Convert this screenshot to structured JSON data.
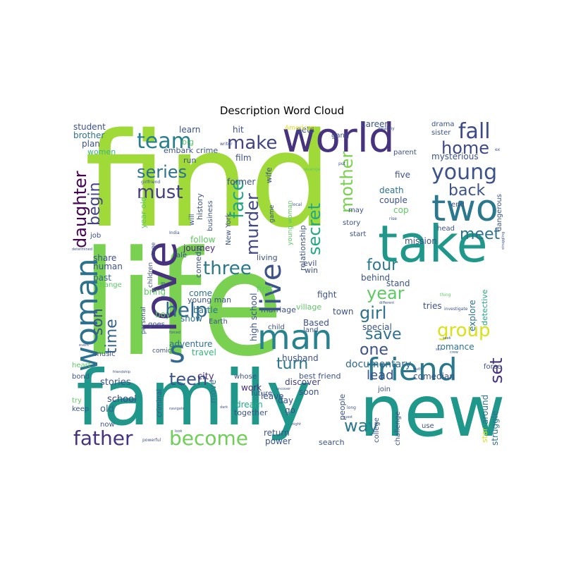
{
  "title": "Description Word Cloud",
  "cloud": {
    "words": [
      {
        "text": "life",
        "color": "#7ad151"
      },
      {
        "text": "find",
        "color": "#a0da39"
      },
      {
        "text": "family",
        "color": "#1f988b"
      },
      {
        "text": "new",
        "color": "#1f988b"
      },
      {
        "text": "world",
        "color": "#46327e"
      },
      {
        "text": "take",
        "color": "#1f988b"
      },
      {
        "text": "love",
        "color": "#46327e"
      },
      {
        "text": "man",
        "color": "#26828e"
      },
      {
        "text": "friend",
        "color": "#2a788e"
      },
      {
        "text": "two",
        "color": "#2a788e"
      },
      {
        "text": "woman",
        "color": "#2c728e"
      },
      {
        "text": "live",
        "color": "#3b528b"
      },
      {
        "text": "s",
        "color": "#31688e"
      },
      {
        "text": "team",
        "color": "#277f8e"
      },
      {
        "text": "young",
        "color": "#3b528b"
      },
      {
        "text": "help",
        "color": "#31688e"
      },
      {
        "text": "make",
        "color": "#414487"
      },
      {
        "text": "fall",
        "color": "#3e4989"
      },
      {
        "text": "father",
        "color": "#46327e"
      },
      {
        "text": "become",
        "color": "#6ece58"
      },
      {
        "text": "three",
        "color": "#2a788e"
      },
      {
        "text": "series",
        "color": "#2c728e"
      },
      {
        "text": "home",
        "color": "#3e4989"
      },
      {
        "text": "must",
        "color": "#433e85"
      },
      {
        "text": "back",
        "color": "#3b528b"
      },
      {
        "text": "face",
        "color": "#21a685"
      },
      {
        "text": "murder",
        "color": "#3e4989"
      },
      {
        "text": "mother",
        "color": "#7ad151"
      },
      {
        "text": "secret",
        "color": "#22a884"
      },
      {
        "text": "daughter",
        "color": "#440154"
      },
      {
        "text": "begin",
        "color": "#414487"
      },
      {
        "text": "son",
        "color": "#3b528b"
      },
      {
        "text": "time",
        "color": "#33638d"
      },
      {
        "text": "four",
        "color": "#2a788e"
      },
      {
        "text": "meet",
        "color": "#2c728e"
      },
      {
        "text": "year",
        "color": "#5ec962"
      },
      {
        "text": "girl",
        "color": "#2c728e"
      },
      {
        "text": "group",
        "color": "#d8e219"
      },
      {
        "text": "save",
        "color": "#2c728e"
      },
      {
        "text": "one",
        "color": "#3b528b"
      },
      {
        "text": "turn",
        "color": "#2a788e"
      },
      {
        "text": "teen",
        "color": "#3b528b"
      },
      {
        "text": "set",
        "color": "#46327e"
      },
      {
        "text": "way",
        "color": "#2a788e"
      },
      {
        "text": "lead",
        "color": "#3b528b"
      },
      {
        "text": "documentary",
        "color": "#31688e"
      },
      {
        "text": "stories",
        "color": "#3b528b"
      },
      {
        "text": "school",
        "color": "#3e4989"
      },
      {
        "text": "old",
        "color": "#33638d"
      },
      {
        "text": "share",
        "color": "#3b528b"
      },
      {
        "text": "past",
        "color": "#33638d"
      },
      {
        "text": "human",
        "color": "#3b528b"
      },
      {
        "text": "bring",
        "color": "#5ec962"
      },
      {
        "text": "come",
        "color": "#2c728e"
      },
      {
        "text": "battle",
        "color": "#2c728e"
      },
      {
        "text": "show",
        "color": "#2c728e"
      },
      {
        "text": "boy",
        "color": "#5ec962"
      },
      {
        "text": "adventure",
        "color": "#2c728e"
      },
      {
        "text": "travel",
        "color": "#35b779"
      },
      {
        "text": "journey",
        "color": "#482878"
      },
      {
        "text": "follow",
        "color": "#5ec962"
      },
      {
        "text": "city",
        "color": "#46327e"
      },
      {
        "text": "work",
        "color": "#482878"
      },
      {
        "text": "dream",
        "color": "#22a884"
      },
      {
        "text": "move",
        "color": "#2c728e"
      },
      {
        "text": "together",
        "color": "#3b528b"
      },
      {
        "text": "day",
        "color": "#3b528b"
      },
      {
        "text": "go",
        "color": "#3b528b"
      },
      {
        "text": "return",
        "color": "#3b528b"
      },
      {
        "text": "power",
        "color": "#3b528b"
      },
      {
        "text": "search",
        "color": "#3b528b"
      },
      {
        "text": "discover",
        "color": "#433e85"
      },
      {
        "text": "soon",
        "color": "#3b528b"
      },
      {
        "text": "leave",
        "color": "#3b528b"
      },
      {
        "text": "husband",
        "color": "#3b528b"
      },
      {
        "text": "comedian",
        "color": "#3b528b"
      },
      {
        "text": "romance",
        "color": "#2c728e"
      },
      {
        "text": "special",
        "color": "#3b528b"
      },
      {
        "text": "fight",
        "color": "#3b528b"
      },
      {
        "text": "town",
        "color": "#3b528b"
      },
      {
        "text": "Based",
        "color": "#3b528b"
      },
      {
        "text": "behind",
        "color": "#3b528b"
      },
      {
        "text": "stand",
        "color": "#3b528b"
      },
      {
        "text": "tries",
        "color": "#3b528b"
      },
      {
        "text": "explore",
        "color": "#2c728e"
      },
      {
        "text": "detective",
        "color": "#22a884"
      },
      {
        "text": "star",
        "color": "#d8e219"
      },
      {
        "text": "around",
        "color": "#2c728e"
      },
      {
        "text": "struggle",
        "color": "#2c728e"
      },
      {
        "text": "mission",
        "color": "#3b528b"
      },
      {
        "text": "death",
        "color": "#2c728e"
      },
      {
        "text": "couple",
        "color": "#3b528b"
      },
      {
        "text": "cop",
        "color": "#5ec962"
      },
      {
        "text": "five",
        "color": "#3b528b"
      },
      {
        "text": "mysterious",
        "color": "#3b528b"
      },
      {
        "text": "career",
        "color": "#3b528b"
      },
      {
        "text": "student",
        "color": "#3b528b"
      },
      {
        "text": "brother",
        "color": "#2c728e"
      },
      {
        "text": "plan",
        "color": "#3b528b"
      },
      {
        "text": "women",
        "color": "#35b779"
      },
      {
        "text": "learn",
        "color": "#3b528b"
      },
      {
        "text": "hit",
        "color": "#3b528b"
      },
      {
        "text": "gets",
        "color": "#3b528b"
      },
      {
        "text": "embark",
        "color": "#3b528b"
      },
      {
        "text": "crime",
        "color": "#3b528b"
      },
      {
        "text": "run",
        "color": "#3b528b"
      },
      {
        "text": "film",
        "color": "#3b528b"
      },
      {
        "text": "former",
        "color": "#3b528b"
      },
      {
        "text": "wife",
        "color": "#3b528b"
      },
      {
        "text": "history",
        "color": "#3b528b"
      },
      {
        "text": "business",
        "color": "#3b528b"
      },
      {
        "text": "comedy",
        "color": "#3b528b"
      },
      {
        "text": "living",
        "color": "#3b528b"
      },
      {
        "text": "evil",
        "color": "#3b528b"
      },
      {
        "text": "win",
        "color": "#3b528b"
      },
      {
        "text": "relationship",
        "color": "#3b528b"
      },
      {
        "text": "high school",
        "color": "#3b528b"
      },
      {
        "text": "marriage",
        "color": "#3b528b"
      },
      {
        "text": "village",
        "color": "#5ec962"
      },
      {
        "text": "first",
        "color": "#5ec962"
      },
      {
        "text": "young man",
        "color": "#3b528b"
      },
      {
        "text": "Earth",
        "color": "#3b528b"
      },
      {
        "text": "child",
        "color": "#3b528b"
      },
      {
        "text": "land",
        "color": "#3b528b"
      },
      {
        "text": "best friend",
        "color": "#3b528b"
      },
      {
        "text": "people",
        "color": "#3b528b"
      },
      {
        "text": "college",
        "color": "#3b528b"
      },
      {
        "text": "challenge",
        "color": "#3b528b"
      },
      {
        "text": "join",
        "color": "#3b528b"
      },
      {
        "text": "use",
        "color": "#3b528b"
      },
      {
        "text": "drama",
        "color": "#3b528b"
      },
      {
        "text": "sister",
        "color": "#3b528b"
      },
      {
        "text": "parent",
        "color": "#3b528b"
      },
      {
        "text": "dangerous",
        "color": "#3b528b"
      },
      {
        "text": "force",
        "color": "#3b528b"
      },
      {
        "text": "end",
        "color": "#3b528b"
      },
      {
        "text": "head",
        "color": "#3b528b"
      },
      {
        "text": "story",
        "color": "#3b528b"
      },
      {
        "text": "start",
        "color": "#3b528b"
      },
      {
        "text": "may",
        "color": "#3b528b"
      },
      {
        "text": "New York",
        "color": "#3b528b"
      },
      {
        "text": "will",
        "color": "#3b528b"
      },
      {
        "text": "young woman",
        "color": "#5ec962"
      },
      {
        "text": "American",
        "color": "#d8e219"
      },
      {
        "text": "big",
        "color": "#5ec962"
      },
      {
        "text": "gang",
        "color": "#3b528b"
      },
      {
        "text": "game",
        "color": "#3b528b"
      },
      {
        "text": "job",
        "color": "#3b528b"
      },
      {
        "text": "children",
        "color": "#3b528b"
      },
      {
        "text": "year old",
        "color": "#5ec962"
      },
      {
        "text": "tale",
        "color": "#3b528b"
      },
      {
        "text": "stage",
        "color": "#3b528b"
      },
      {
        "text": "kid",
        "color": "#3b528b"
      },
      {
        "text": "change",
        "color": "#5ec962"
      },
      {
        "text": "goes",
        "color": "#3b528b"
      },
      {
        "text": "personal",
        "color": "#3b528b"
      },
      {
        "text": "music",
        "color": "#3b528b"
      },
      {
        "text": "comic",
        "color": "#3b528b"
      },
      {
        "text": "heart",
        "color": "#5ec962"
      },
      {
        "text": "bond",
        "color": "#3b528b"
      },
      {
        "text": "try",
        "color": "#5ec962"
      },
      {
        "text": "keep",
        "color": "#3b528b"
      },
      {
        "text": "now",
        "color": "#3b528b"
      },
      {
        "text": "criminal",
        "color": "#3b528b"
      },
      {
        "text": "whose",
        "color": "#3b528b"
      },
      {
        "text": "future",
        "color": "#3b528b"
      },
      {
        "text": "mission",
        "color": "#3b528b"
      },
      {
        "text": "writer",
        "color": "#3b528b"
      },
      {
        "text": "wealthy",
        "color": "#3b528b"
      },
      {
        "text": "revenge",
        "color": "#5ec962"
      },
      {
        "text": "girlfriend",
        "color": "#3b528b"
      },
      {
        "text": "local",
        "color": "#3b528b"
      },
      {
        "text": "put",
        "color": "#3b528b"
      },
      {
        "text": "rise",
        "color": "#3b528b"
      },
      {
        "text": "ex",
        "color": "#3b528b"
      },
      {
        "text": "India",
        "color": "#3b528b"
      },
      {
        "text": "determined",
        "color": "#3b528b"
      },
      {
        "text": "thing",
        "color": "#5ec962"
      },
      {
        "text": "investigate",
        "color": "#3b528b"
      },
      {
        "text": "seek",
        "color": "#3b528b"
      },
      {
        "text": "different",
        "color": "#3b528b"
      },
      {
        "text": "truth",
        "color": "#3b528b"
      },
      {
        "text": "crew",
        "color": "#3b528b"
      },
      {
        "text": "sex",
        "color": "#3b528b"
      },
      {
        "text": "event",
        "color": "#3b528b"
      },
      {
        "text": "friendship",
        "color": "#3b528b"
      },
      {
        "text": "navigate",
        "color": "#3b528b"
      },
      {
        "text": "dark",
        "color": "#3b528b"
      },
      {
        "text": "uncover",
        "color": "#3b528b"
      },
      {
        "text": "long",
        "color": "#3b528b"
      },
      {
        "text": "night",
        "color": "#3b528b"
      },
      {
        "text": "quest",
        "color": "#3b528b"
      },
      {
        "text": "cop",
        "color": "#5ec962"
      },
      {
        "text": "struggling",
        "color": "#3b528b"
      },
      {
        "text": "look",
        "color": "#3b528b"
      },
      {
        "text": "powerful",
        "color": "#3b528b"
      },
      {
        "text": "forced",
        "color": "#3b528b"
      }
    ]
  }
}
